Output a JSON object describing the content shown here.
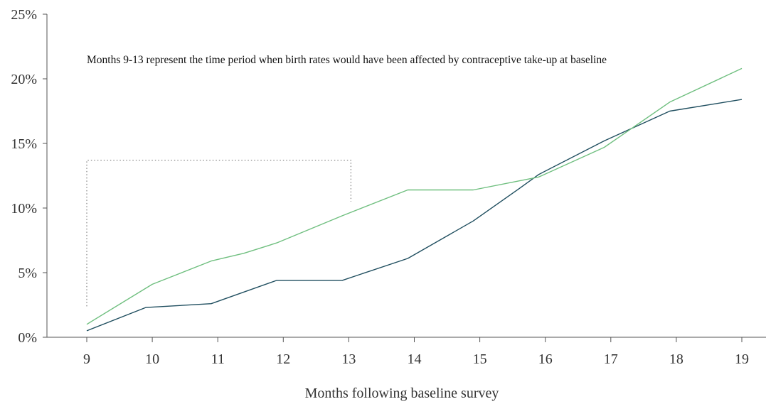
{
  "chart_data": {
    "type": "line",
    "xlabel": "Months following baseline survey",
    "ylabel": "",
    "x_ticks": [
      "9",
      "10",
      "11",
      "12",
      "13",
      "14",
      "15",
      "16",
      "17",
      "18",
      "19"
    ],
    "y_ticks": [
      "0%",
      "5%",
      "10%",
      "15%",
      "20%",
      "25%"
    ],
    "xlim": [
      9,
      19
    ],
    "ylim": [
      0,
      25
    ],
    "grid": false,
    "annotation": "Months 9-13 represent the time period when birth rates would have been affected by contraceptive take-up at baseline",
    "highlight_range": [
      9,
      13
    ],
    "series": [
      {
        "color": "#1f4e5f",
        "points": [
          {
            "x": 9.0,
            "y": 0.5
          },
          {
            "x": 9.9,
            "y": 2.3
          },
          {
            "x": 10.9,
            "y": 2.6
          },
          {
            "x": 11.9,
            "y": 4.4
          },
          {
            "x": 12.9,
            "y": 4.4
          },
          {
            "x": 13.9,
            "y": 6.1
          },
          {
            "x": 14.9,
            "y": 9.0
          },
          {
            "x": 15.6,
            "y": 11.5
          },
          {
            "x": 15.9,
            "y": 12.6
          },
          {
            "x": 16.9,
            "y": 15.2
          },
          {
            "x": 17.9,
            "y": 17.5
          },
          {
            "x": 19.0,
            "y": 18.4
          }
        ]
      },
      {
        "color": "#6fbf7f",
        "points": [
          {
            "x": 9.0,
            "y": 1.0
          },
          {
            "x": 10.0,
            "y": 4.1
          },
          {
            "x": 10.9,
            "y": 5.9
          },
          {
            "x": 11.4,
            "y": 6.5
          },
          {
            "x": 11.9,
            "y": 7.3
          },
          {
            "x": 12.9,
            "y": 9.4
          },
          {
            "x": 13.9,
            "y": 11.4
          },
          {
            "x": 14.9,
            "y": 11.4
          },
          {
            "x": 15.9,
            "y": 12.4
          },
          {
            "x": 16.9,
            "y": 14.7
          },
          {
            "x": 17.9,
            "y": 18.2
          },
          {
            "x": 19.0,
            "y": 20.8
          }
        ]
      }
    ]
  }
}
